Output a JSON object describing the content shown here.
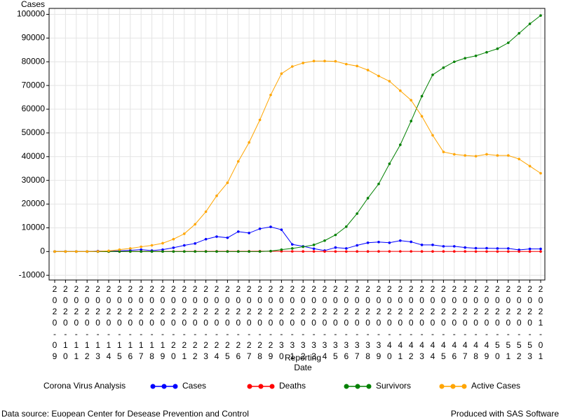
{
  "chart_data": {
    "type": "line",
    "y_label": "Cases",
    "x_label": [
      "Reporting",
      "Date"
    ],
    "legend_title": "Corona Virus Analysis",
    "source": "Data source: Euopean Center for Desease Prevention and Control",
    "credit": "Produced with SAS Software",
    "grid": true,
    "legend": "bottom",
    "categories": [
      "2020-09",
      "2020-10",
      "2020-11",
      "2020-12",
      "2020-13",
      "2020-14",
      "2020-15",
      "2020-16",
      "2020-17",
      "2020-18",
      "2020-19",
      "2020-20",
      "2020-21",
      "2020-22",
      "2020-23",
      "2020-24",
      "2020-25",
      "2020-26",
      "2020-27",
      "2020-28",
      "2020-29",
      "2020-30",
      "2020-31",
      "2020-32",
      "2020-33",
      "2020-34",
      "2020-35",
      "2020-36",
      "2020-37",
      "2020-38",
      "2020-39",
      "2020-40",
      "2020-41",
      "2020-42",
      "2020-43",
      "2020-44",
      "2020-45",
      "2020-46",
      "2020-47",
      "2020-48",
      "2020-49",
      "2020-50",
      "2020-51",
      "2020-52",
      "2020-53",
      "2021-01"
    ],
    "ylim": [
      -12000,
      102500
    ],
    "yticks": [
      -10000,
      0,
      10000,
      20000,
      30000,
      40000,
      50000,
      60000,
      70000,
      80000,
      90000,
      100000
    ],
    "series": [
      {
        "name": "Cases",
        "color": "#0000ff",
        "values": [
          0,
          0,
          0,
          0,
          200,
          100,
          300,
          500,
          800,
          400,
          800,
          1600,
          2600,
          3400,
          5200,
          6300,
          5800,
          8400,
          7800,
          9600,
          10400,
          9200,
          3000,
          2200,
          1200,
          400,
          1700,
          1300,
          2600,
          3700,
          4000,
          3700,
          4600,
          4100,
          2800,
          2800,
          2200,
          2200,
          1700,
          1400,
          1400,
          1300,
          1300,
          700,
          1100,
          1100
        ]
      },
      {
        "name": "Deaths",
        "color": "#ff0000",
        "values": [
          0,
          0,
          0,
          0,
          0,
          0,
          10,
          20,
          30,
          30,
          40,
          50,
          60,
          70,
          80,
          100,
          90,
          100,
          110,
          120,
          130,
          110,
          60,
          40,
          30,
          20,
          20,
          20,
          30,
          40,
          50,
          50,
          60,
          60,
          40,
          40,
          30,
          30,
          30,
          20,
          20,
          20,
          20,
          10,
          20,
          20
        ]
      },
      {
        "name": "Survivors",
        "color": "#008000",
        "values": [
          0,
          0,
          0,
          0,
          0,
          0,
          0,
          0,
          0,
          0,
          0,
          0,
          0,
          0,
          0,
          0,
          0,
          0,
          0,
          0,
          200,
          800,
          1300,
          2000,
          2800,
          4600,
          7000,
          10500,
          16000,
          22500,
          28500,
          37000,
          45000,
          55000,
          65500,
          74500,
          77500,
          80000,
          81500,
          82500,
          84000,
          85500,
          88000,
          92000,
          96000,
          99500
        ]
      },
      {
        "name": "Active Cases",
        "color": "#ffa500",
        "values": [
          0,
          0,
          0,
          0,
          100,
          300,
          800,
          1300,
          2000,
          2600,
          3500,
          5200,
          7500,
          11500,
          16800,
          23500,
          29000,
          38000,
          46000,
          55500,
          66000,
          75000,
          78000,
          79500,
          80300,
          80300,
          80200,
          79000,
          78200,
          76500,
          74000,
          71800,
          67800,
          63800,
          57000,
          49000,
          42000,
          41000,
          40500,
          40200,
          41000,
          40500,
          40500,
          39000,
          36000,
          33000
        ]
      }
    ]
  }
}
